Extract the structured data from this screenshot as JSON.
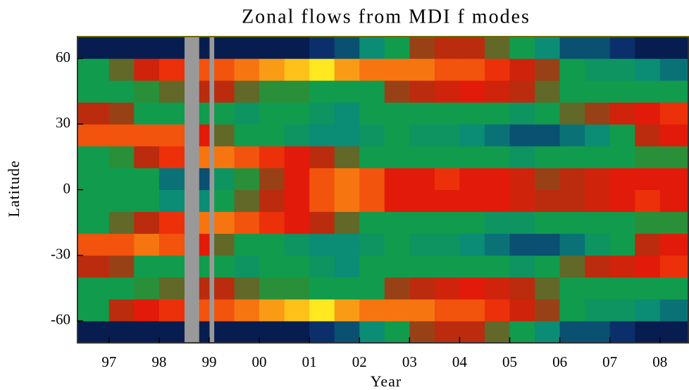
{
  "chart_data": {
    "type": "heatmap",
    "title": "Zonal flows from MDI f modes",
    "xlabel": "Year",
    "ylabel": "Latitude",
    "xlim": [
      1996.37,
      2008.58
    ],
    "ylim": [
      -70,
      70
    ],
    "xticks": [
      {
        "value": 1997,
        "label": "97"
      },
      {
        "value": 1998,
        "label": "98"
      },
      {
        "value": 1999,
        "label": "99"
      },
      {
        "value": 2000,
        "label": "00"
      },
      {
        "value": 2001,
        "label": "01"
      },
      {
        "value": 2002,
        "label": "02"
      },
      {
        "value": 2003,
        "label": "03"
      },
      {
        "value": 2004,
        "label": "04"
      },
      {
        "value": 2005,
        "label": "05"
      },
      {
        "value": 2006,
        "label": "06"
      },
      {
        "value": 2007,
        "label": "07"
      },
      {
        "value": 2008,
        "label": "08"
      }
    ],
    "yticks": [
      -60,
      -30,
      0,
      30,
      60
    ],
    "xbins": [
      1996.37,
      1997,
      1997.5,
      1998,
      1998.5,
      1998.8,
      1999.0,
      1999.1,
      1999.5,
      2000,
      2000.5,
      2001,
      2001.5,
      2002,
      2002.5,
      2003,
      2003.5,
      2004,
      2004.5,
      2005,
      2005.5,
      2006,
      2006.5,
      2007,
      2007.5,
      2008,
      2008.58
    ],
    "ybins": [
      -70,
      -60,
      -50,
      -40,
      -30,
      -20,
      -10,
      0,
      10,
      20,
      30,
      40,
      50,
      60,
      70
    ],
    "zlim": [
      -5,
      5
    ],
    "colormap": [
      "#000010",
      "#0a2a6a",
      "#0a8a7a",
      "#12a040",
      "#b03010",
      "#e81808",
      "#f87a10",
      "#ffe820"
    ],
    "missing_color": "#999999",
    "z": [
      [
        -4,
        -4,
        -4,
        -4,
        null,
        -4,
        null,
        -4,
        -4,
        -4,
        -4,
        -3.5,
        -3,
        -2,
        -1,
        0.5,
        1,
        1,
        0,
        -1,
        -2,
        -3,
        -3,
        -3.5,
        -4,
        -4
      ],
      [
        -1,
        1,
        2,
        2.5,
        null,
        3,
        null,
        3,
        3.5,
        4,
        4.5,
        5,
        4,
        3.5,
        3.5,
        3.5,
        3,
        3,
        2.5,
        1.5,
        0.5,
        -1,
        -1.5,
        -1.5,
        -2,
        -2.5
      ],
      [
        -1,
        -1,
        -0.5,
        0,
        null,
        1,
        null,
        1,
        0,
        -0.5,
        -0.5,
        -1,
        -1,
        -1,
        0.5,
        1,
        1.5,
        2,
        1.5,
        1,
        0,
        -1,
        -1,
        -1,
        -1,
        -1
      ],
      [
        1,
        0.5,
        -1,
        -1,
        null,
        -1,
        null,
        -1,
        -1.5,
        -1,
        -1,
        -1.5,
        -2,
        -1,
        -1,
        -1,
        -1,
        -1,
        -1,
        -1.5,
        -1,
        0,
        1,
        1.5,
        2,
        2.5
      ],
      [
        3,
        3,
        3.5,
        3,
        null,
        2,
        null,
        0,
        -1,
        -1,
        -1.5,
        -2,
        -2,
        -1.5,
        -1,
        -1.5,
        -1.5,
        -2,
        -2.5,
        -3,
        -3,
        -2.5,
        -1.5,
        -1,
        1,
        2
      ],
      [
        -1,
        0,
        1,
        2.5,
        null,
        3.5,
        null,
        3.5,
        3,
        2.5,
        2,
        1,
        0,
        -1,
        -1,
        -1,
        -1,
        -1,
        -1.5,
        -1.5,
        -1,
        -1,
        -1,
        -1,
        -0.5,
        -0.5
      ],
      [
        -1,
        -1,
        -1,
        -2,
        null,
        -2,
        null,
        -1,
        0,
        1,
        2,
        3,
        3.5,
        3,
        2,
        2,
        2,
        2,
        2,
        1.5,
        1,
        1,
        1.5,
        2,
        2.5,
        2
      ],
      [
        -1,
        -1,
        -1,
        -2.5,
        null,
        -3,
        null,
        -1.5,
        -0.5,
        0.5,
        2,
        3,
        3.5,
        3,
        2,
        2,
        2.5,
        2,
        2,
        1.5,
        0.5,
        1,
        1.5,
        2,
        2,
        2
      ],
      [
        -1,
        -0.5,
        1,
        2.5,
        null,
        3.5,
        null,
        3.5,
        3,
        2.5,
        2,
        1,
        0,
        -1,
        -1,
        -1,
        -1,
        -1,
        -1,
        -1.5,
        -1,
        -1,
        -1,
        -1,
        -0.5,
        -0.5
      ],
      [
        3,
        3,
        3,
        3,
        null,
        2,
        null,
        0,
        -1,
        -1,
        -1.5,
        -2,
        -2,
        -1.5,
        -1,
        -1.5,
        -1.5,
        -2,
        -2.5,
        -3,
        -3,
        -2.5,
        -2,
        -1,
        1,
        2
      ],
      [
        1,
        0.5,
        -1,
        -1,
        null,
        -1,
        null,
        -1,
        -1.5,
        -1,
        -1,
        -1.5,
        -2,
        -1,
        -1,
        -1,
        -1,
        -1,
        -1,
        -1.5,
        -1,
        0,
        0.5,
        1.5,
        2,
        2.5
      ],
      [
        -1,
        -1,
        -0.5,
        0,
        null,
        1,
        null,
        1,
        0,
        -0.5,
        -0.5,
        -1,
        -1,
        -1,
        0.5,
        1,
        1.5,
        2,
        1.5,
        1,
        0,
        -1,
        -1,
        -1,
        -1,
        -1
      ],
      [
        -1,
        0,
        1.5,
        2.5,
        null,
        3,
        null,
        3,
        3.5,
        4,
        4.5,
        5,
        4,
        3.5,
        3.5,
        3.5,
        3,
        3,
        2.5,
        1.5,
        0.5,
        -1,
        -1.5,
        -1.5,
        -2,
        -2.5
      ],
      [
        -4,
        -4,
        -4,
        -4,
        null,
        -4,
        null,
        -4,
        -4,
        -4,
        -4,
        -3.5,
        -3,
        -2,
        -1,
        0.5,
        1,
        1,
        0,
        -1,
        -2,
        -3,
        -3,
        -3.5,
        -4,
        -4
      ]
    ]
  }
}
